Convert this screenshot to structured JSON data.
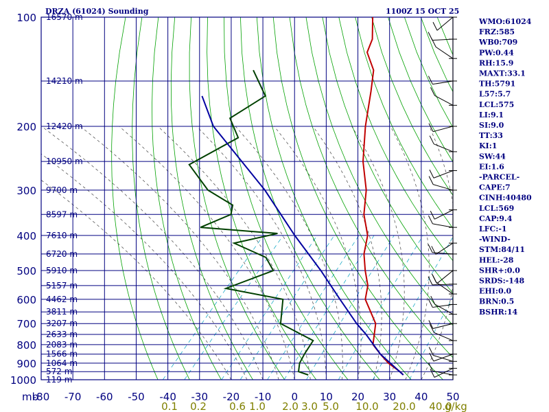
{
  "header": {
    "title": "DRZA (61024) Sounding",
    "time": "1100Z 15 OCT 25"
  },
  "colors": {
    "frame": "#000080",
    "dry_adiabat": "#00a000",
    "moist_adiabat": "#404040",
    "mixing_ratio": "#00a0c0",
    "temperature": "#c00000",
    "dewpoint": "#004000",
    "parcel": "#0000a0",
    "wind_barb": "#000000"
  },
  "stats": [
    "WMO:61024",
    "FRZ:585",
    "WB0:709",
    "PW:0.44",
    "RH:15.9",
    "MAXT:33.1",
    "TH:5791",
    "L57:5.7",
    "LCL:575",
    "LI:9.1",
    "SI:9.0",
    "TT:33",
    "KI:1",
    "SW:44",
    "EI:1.6",
    "-PARCEL-",
    "CAPE:7",
    "CINH:40480",
    "LCL:569",
    "CAP:9.4",
    "LFC:-1",
    "-WIND-",
    "STM:84/11",
    "HEL:-28",
    "SHR+:0.0",
    "SRDS:-148",
    "EHI:0.0",
    "BRN:0.5",
    "BSHR:14"
  ],
  "chart_data": {
    "type": "line",
    "chart_kind": "skew-T log-P sounding",
    "x_axis_unit": "mb",
    "x_ticks": [
      "-80",
      "-70",
      "-60",
      "-50",
      "-40",
      "-30",
      "-20",
      "-10",
      "0",
      "10",
      "20",
      "30",
      "40",
      "50"
    ],
    "xlim": [
      -80,
      50
    ],
    "y_ticks": [
      "100",
      "200",
      "300",
      "400",
      "500",
      "600",
      "700",
      "800",
      "900",
      "1000"
    ],
    "ylim": [
      100,
      1000
    ],
    "y_scale": "log",
    "mixing_ratio_labels": [
      "0.1",
      "0.2",
      "0.6",
      "1.0",
      "2.0",
      "3.0",
      "5.0",
      "10.0",
      "20.0",
      "40.0"
    ],
    "mixing_ratio_unit": "g/kg",
    "height_labels": [
      {
        "p": 100,
        "label": "16570 m"
      },
      {
        "p": 150,
        "label": "14210 m"
      },
      {
        "p": 200,
        "label": "12420 m"
      },
      {
        "p": 250,
        "label": "10950 m"
      },
      {
        "p": 300,
        "label": "9700 m"
      },
      {
        "p": 350,
        "label": "8597 m"
      },
      {
        "p": 400,
        "label": "7610 m"
      },
      {
        "p": 450,
        "label": "6720 m"
      },
      {
        "p": 500,
        "label": "5910 m"
      },
      {
        "p": 550,
        "label": "5157 m"
      },
      {
        "p": 600,
        "label": "4462 m"
      },
      {
        "p": 650,
        "label": "3811 m"
      },
      {
        "p": 700,
        "label": "3207 m"
      },
      {
        "p": 750,
        "label": "2633 m"
      },
      {
        "p": 800,
        "label": "2083 m"
      },
      {
        "p": 850,
        "label": "1566 m"
      },
      {
        "p": 900,
        "label": "1064 m"
      },
      {
        "p": 950,
        "label": "572 m"
      },
      {
        "p": 1000,
        "label": "119 m"
      }
    ],
    "series": [
      {
        "points": [
          {
            "p": 970,
            "t": 33
          },
          {
            "p": 950,
            "t": 31
          },
          {
            "p": 900,
            "t": 25
          },
          {
            "p": 850,
            "t": 20
          },
          {
            "p": 800,
            "t": 15
          },
          {
            "p": 700,
            "t": 10
          },
          {
            "p": 600,
            "t": 0
          },
          {
            "p": 550,
            "t": -3
          },
          {
            "p": 500,
            "t": -8
          },
          {
            "p": 450,
            "t": -13
          },
          {
            "p": 400,
            "t": -17
          },
          {
            "p": 350,
            "t": -24
          },
          {
            "p": 300,
            "t": -30
          },
          {
            "p": 250,
            "t": -39
          },
          {
            "p": 200,
            "t": -48
          },
          {
            "p": 160,
            "t": -56
          },
          {
            "p": 140,
            "t": -61
          },
          {
            "p": 125,
            "t": -68
          },
          {
            "p": 115,
            "t": -70
          },
          {
            "p": 100,
            "t": -76
          }
        ]
      },
      {
        "points": [
          {
            "p": 970,
            "t": 3
          },
          {
            "p": 950,
            "t": -1
          },
          {
            "p": 900,
            "t": -3
          },
          {
            "p": 850,
            "t": -4
          },
          {
            "p": 780,
            "t": -5
          },
          {
            "p": 700,
            "t": -20
          },
          {
            "p": 600,
            "t": -26
          },
          {
            "p": 560,
            "t": -47
          },
          {
            "p": 500,
            "t": -37
          },
          {
            "p": 460,
            "t": -43
          },
          {
            "p": 420,
            "t": -57
          },
          {
            "p": 395,
            "t": -46
          },
          {
            "p": 380,
            "t": -72
          },
          {
            "p": 350,
            "t": -66
          },
          {
            "p": 330,
            "t": -68
          },
          {
            "p": 300,
            "t": -80
          },
          {
            "p": 255,
            "t": -93
          },
          {
            "p": 215,
            "t": -85
          },
          {
            "p": 190,
            "t": -93
          },
          {
            "p": 165,
            "t": -88
          },
          {
            "p": 140,
            "t": -99
          }
        ]
      },
      {
        "points": [
          {
            "p": 970,
            "t": 33
          },
          {
            "p": 850,
            "t": 20
          },
          {
            "p": 750,
            "t": 10
          },
          {
            "p": 700,
            "t": 4
          },
          {
            "p": 600,
            "t": -8
          },
          {
            "p": 500,
            "t": -22
          },
          {
            "p": 400,
            "t": -40
          },
          {
            "p": 300,
            "t": -62
          },
          {
            "p": 200,
            "t": -96
          },
          {
            "p": 165,
            "t": -108
          }
        ]
      }
    ],
    "wind_barbs_pressures": [
      100,
      115,
      130,
      150,
      175,
      200,
      235,
      265,
      300,
      340,
      380,
      420,
      450,
      500,
      545,
      580,
      620,
      660,
      700,
      780,
      850,
      890,
      930,
      970
    ]
  }
}
